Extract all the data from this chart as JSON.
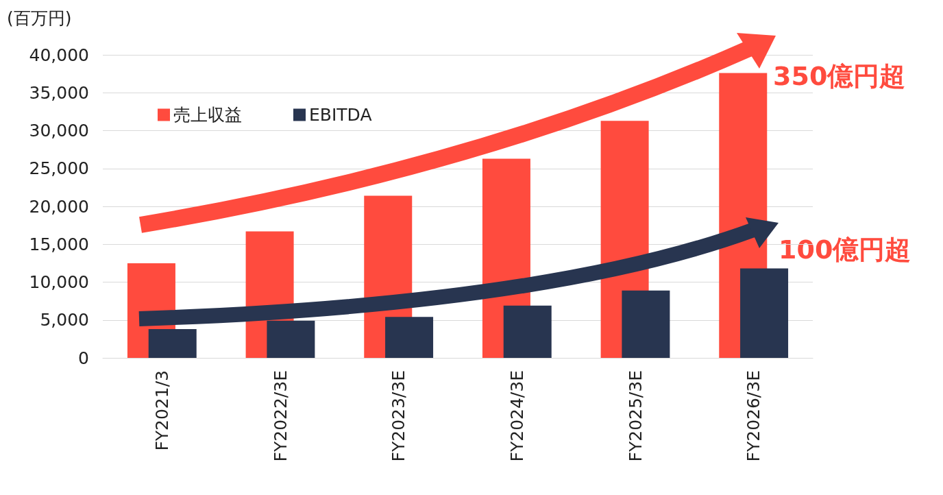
{
  "chart_data": {
    "type": "bar",
    "ylabel": "(百万円)",
    "categories": [
      "FY2021/3",
      "FY2022/3E",
      "FY2023/3E",
      "FY2024/3E",
      "FY2025/3E",
      "FY2026/3E"
    ],
    "series": [
      {
        "name": "売上収益",
        "color": "#ff4b3e",
        "values": [
          12500,
          16700,
          21400,
          26300,
          31300,
          37600
        ]
      },
      {
        "name": "EBITDA",
        "color": "#283550",
        "values": [
          3800,
          4900,
          5400,
          6900,
          8900,
          11800
        ]
      }
    ],
    "ylim": [
      0,
      40000
    ],
    "yticks": [
      0,
      {
        "value": 5000,
        "label": "5,000"
      },
      {
        "value": 10000,
        "label": "10,000"
      },
      {
        "value": 15000,
        "label": "15,000"
      },
      {
        "value": 20000,
        "label": "20,000"
      },
      {
        "value": 25000,
        "label": "25,000"
      },
      {
        "value": 30000,
        "label": "30,000"
      },
      {
        "value": 35000,
        "label": "35,000"
      },
      {
        "value": 40000,
        "label": "40,000"
      }
    ],
    "grid": "y",
    "legend": "top left",
    "annotations": [
      "350億円超",
      "100億円超"
    ]
  }
}
